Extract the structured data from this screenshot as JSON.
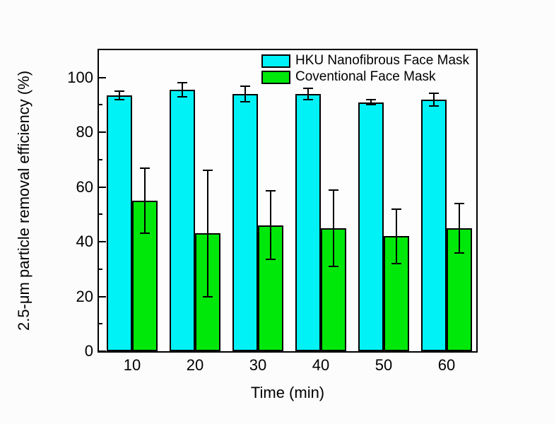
{
  "chart_data": {
    "type": "bar",
    "title": "",
    "xlabel": "Time (min)",
    "ylabel": "2.5-μm particle removal efficiency (%)",
    "categories": [
      "10",
      "20",
      "30",
      "40",
      "50",
      "60"
    ],
    "series": [
      {
        "name": "HKU Nanofibrous Face Mask",
        "color": "#00f2f7",
        "values": [
          93.5,
          95.5,
          94,
          94,
          91,
          92
        ],
        "errors": [
          1.5,
          2.5,
          2.8,
          2.0,
          1.0,
          2.3
        ]
      },
      {
        "name": "Coventional Face Mask",
        "color": "#00e80a",
        "values": [
          55,
          43,
          46,
          45,
          42,
          45
        ],
        "errors": [
          12,
          23,
          12.5,
          14,
          10,
          9
        ]
      }
    ],
    "ylim": [
      0,
      110
    ],
    "yticks": [
      0,
      20,
      40,
      60,
      80,
      100
    ],
    "yticks_minor": [
      10,
      30,
      50,
      70,
      90
    ],
    "grid": false,
    "legend_position": "top-right-inside",
    "error_bars": true,
    "bar_edge_color": "#000000",
    "axis_color": "#000000"
  }
}
